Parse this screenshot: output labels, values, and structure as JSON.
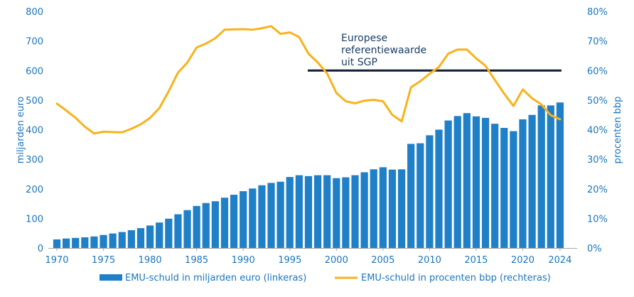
{
  "chart_data": {
    "type": "bar+line",
    "title": "",
    "years": [
      1970,
      1971,
      1972,
      1973,
      1974,
      1975,
      1976,
      1977,
      1978,
      1979,
      1980,
      1981,
      1982,
      1983,
      1984,
      1985,
      1986,
      1987,
      1988,
      1989,
      1990,
      1991,
      1992,
      1993,
      1994,
      1995,
      1996,
      1997,
      1998,
      1999,
      2000,
      2001,
      2002,
      2003,
      2004,
      2005,
      2006,
      2007,
      2008,
      2009,
      2010,
      2011,
      2012,
      2013,
      2014,
      2015,
      2016,
      2017,
      2018,
      2019,
      2020,
      2021,
      2022,
      2023,
      2024
    ],
    "x_ticks": [
      "1970",
      "1975",
      "1980",
      "1985",
      "1990",
      "1995",
      "2000",
      "2005",
      "2010",
      "2015",
      "2020",
      "2024"
    ],
    "y_left": {
      "label": "miljarden euro",
      "lim": [
        0,
        800
      ],
      "ticks": [
        "0",
        "100",
        "200",
        "300",
        "400",
        "500",
        "600",
        "700",
        "800"
      ]
    },
    "y_right": {
      "label": "procenten bbp",
      "lim": [
        0,
        80
      ],
      "ticks": [
        "0%",
        "10%",
        "20%",
        "30%",
        "40%",
        "50%",
        "60%",
        "70%",
        "80%"
      ]
    },
    "series": [
      {
        "name": "EMU-schuld in miljarden euro (linkeras)",
        "type": "bar",
        "axis": "left",
        "color": "#1f7fc7",
        "values": [
          29,
          32,
          34,
          36,
          39,
          44,
          49,
          54,
          60,
          67,
          76,
          86,
          99,
          114,
          128,
          142,
          152,
          158,
          170,
          180,
          192,
          201,
          212,
          220,
          224,
          240,
          246,
          243,
          246,
          246,
          236,
          239,
          246,
          256,
          266,
          273,
          265,
          266,
          352,
          354,
          381,
          400,
          431,
          446,
          456,
          445,
          440,
          420,
          406,
          395,
          435,
          450,
          482,
          482,
          492
        ]
      },
      {
        "name": "EMU-schuld in procenten bbp (rechteras)",
        "type": "line",
        "axis": "right",
        "color": "#f9b21b",
        "values": [
          48.8,
          46.5,
          44.0,
          41.0,
          38.7,
          39.3,
          39.2,
          39.1,
          40.3,
          41.8,
          44.0,
          47.3,
          53.0,
          59.3,
          62.7,
          67.8,
          69.1,
          70.9,
          73.8,
          73.9,
          74.0,
          73.8,
          74.3,
          75.0,
          72.4,
          72.9,
          71.3,
          65.7,
          62.7,
          59.0,
          52.4,
          49.6,
          48.9,
          49.8,
          50.1,
          49.6,
          45.0,
          42.8,
          54.3,
          56.4,
          58.9,
          61.2,
          65.7,
          67.1,
          67.1,
          64.1,
          61.6,
          56.8,
          52.2,
          48.0,
          53.6,
          50.6,
          48.5,
          44.9,
          43.5
        ]
      },
      {
        "name": "Europese referentiewaarde uit SGP",
        "type": "reference_line",
        "axis": "right",
        "color": "#0f1e33",
        "value": 60,
        "x_range": [
          1997,
          2024
        ]
      }
    ],
    "annotation": [
      "Europese",
      "referentiewaarde",
      "uit SGP"
    ],
    "legend": {
      "placement": "bottom",
      "entries": [
        "EMU-schuld in miljarden euro (linkeras)",
        "EMU-schuld in procenten bbp (rechteras)"
      ]
    },
    "grid": false
  }
}
